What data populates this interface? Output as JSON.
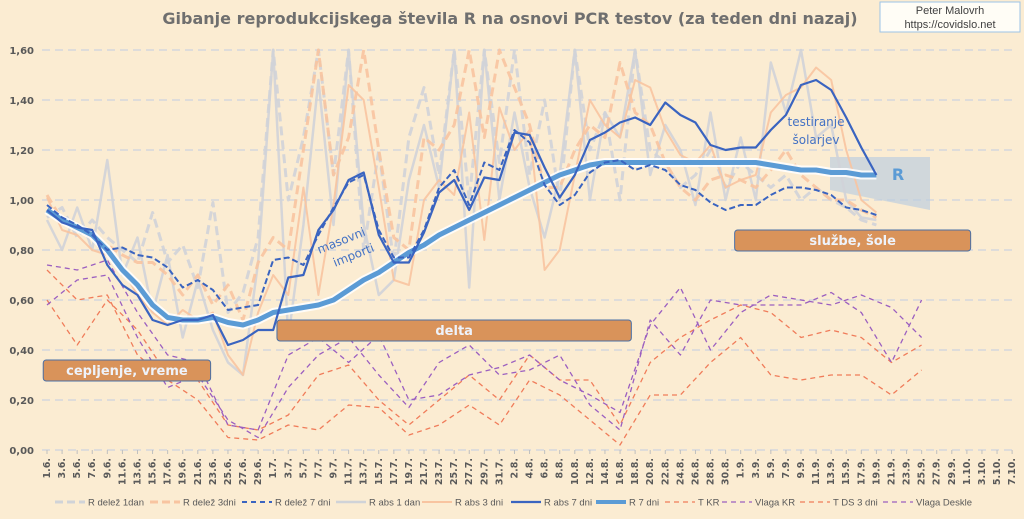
{
  "chart_data": {
    "type": "line",
    "title": "Gibanje reprodukcijskega števila R na osnovi PCR testov (za teden dni nazaj)",
    "credit": {
      "author": "Peter Malovrh",
      "site": "https://covidslo.net"
    },
    "xlabel": "",
    "ylabel": "",
    "x_start_label": "1.6.",
    "ylim": [
      0,
      1.6
    ],
    "yticks": [
      "0,00",
      "0,20",
      "0,40",
      "0,60",
      "0,80",
      "1,00",
      "1,20",
      "1,40",
      "1,60"
    ],
    "ytick_values": [
      0,
      0.2,
      0.4,
      0.6,
      0.8,
      1.0,
      1.2,
      1.4,
      1.6
    ],
    "x_day_range": [
      0,
      128
    ],
    "xticks": [
      "1.6.",
      "3.6.",
      "5.6.",
      "7.6.",
      "9.6.",
      "11.6.",
      "13.6.",
      "15.6.",
      "17.6.",
      "19.6.",
      "21.6.",
      "23.6.",
      "25.6.",
      "27.6.",
      "29.6.",
      "1.7.",
      "3.7.",
      "5.7.",
      "7.7.",
      "9.7.",
      "11.7.",
      "13.7.",
      "15.7.",
      "17.7.",
      "19.7.",
      "21.7.",
      "23.7.",
      "25.7.",
      "27.7.",
      "29.7.",
      "31.7.",
      "2.8.",
      "4.8.",
      "6.8.",
      "8.8.",
      "10.8.",
      "12.8.",
      "14.8.",
      "16.8.",
      "18.8.",
      "20.8.",
      "22.8.",
      "24.8.",
      "26.8.",
      "28.8.",
      "30.8.",
      "1.9.",
      "3.9.",
      "5.9.",
      "7.9.",
      "9.9.",
      "11.9.",
      "13.9.",
      "15.9.",
      "17.9.",
      "19.9.",
      "21.9.",
      "23.9.",
      "25.9.",
      "27.9.",
      "29.9.",
      "1.10.",
      "3.10.",
      "5.10.",
      "7.10."
    ],
    "grid": true,
    "legend_position": "bottom",
    "series": [
      {
        "name": "R delež 1dan",
        "color": "#d0d3d8",
        "step_days": 2,
        "values": [
          0.93,
          0.97,
          0.85,
          0.92,
          0.85,
          0.8,
          0.75,
          0.95,
          0.75,
          0.82,
          0.65,
          0.99,
          0.55,
          0.63,
          0.85,
          1.6,
          1.0,
          1.25,
          1.6,
          1.1,
          1.6,
          0.8,
          1.2,
          0.75,
          1.25,
          1.45,
          1.1,
          1.6,
          1.0,
          1.6,
          1.15,
          1.6,
          1.1,
          1.4,
          1.0,
          1.6,
          1.2,
          1.35,
          1.0,
          1.6,
          1.2,
          1.15,
          1.05,
          1.1,
          1.2,
          1.05,
          1.15,
          1.1,
          1.05,
          1.1,
          1.0,
          1.05,
          1.0,
          0.97,
          0.92,
          0.9
        ]
      },
      {
        "name": "R delež 3dni",
        "color": "#f8c4a0",
        "step_days": 2,
        "values": [
          1.02,
          0.92,
          0.88,
          0.85,
          0.82,
          0.78,
          0.75,
          0.75,
          0.7,
          0.62,
          0.7,
          0.58,
          0.66,
          0.52,
          0.75,
          0.85,
          0.8,
          1.2,
          1.6,
          1.1,
          1.25,
          1.6,
          1.2,
          0.85,
          0.8,
          1.25,
          1.2,
          1.3,
          1.6,
          1.25,
          1.6,
          1.45,
          1.3,
          1.05,
          1.05,
          1.2,
          1.3,
          1.25,
          1.55,
          1.35,
          1.3,
          1.15,
          1.05,
          1.0,
          1.08,
          1.1,
          1.08,
          1.05,
          1.12,
          1.2,
          1.1,
          1.05,
          1.0,
          1.0,
          0.96,
          0.93
        ]
      },
      {
        "name": "R delež 7 dni",
        "color": "#3a64c0",
        "step_days": 2,
        "values": [
          0.98,
          0.93,
          0.9,
          0.86,
          0.8,
          0.81,
          0.78,
          0.77,
          0.73,
          0.65,
          0.68,
          0.64,
          0.56,
          0.57,
          0.58,
          0.76,
          0.77,
          0.74,
          0.86,
          0.97,
          1.07,
          1.1,
          0.88,
          0.77,
          0.77,
          0.88,
          1.05,
          1.12,
          0.98,
          1.15,
          1.12,
          1.28,
          1.23,
          1.06,
          0.98,
          1.02,
          1.11,
          1.15,
          1.16,
          1.12,
          1.14,
          1.12,
          1.06,
          1.04,
          0.99,
          0.96,
          0.98,
          0.98,
          1.02,
          1.05,
          1.05,
          1.04,
          1.02,
          0.97,
          0.96,
          0.94
        ]
      },
      {
        "name": "R abs 1 dan",
        "color": "#d0d3d8",
        "step_days": 2,
        "values": [
          0.92,
          0.8,
          0.97,
          0.8,
          1.16,
          0.7,
          0.85,
          0.55,
          0.78,
          0.45,
          0.68,
          0.48,
          0.35,
          0.3,
          0.75,
          1.6,
          0.45,
          0.9,
          1.48,
          0.9,
          1.6,
          0.9,
          0.62,
          0.68,
          1.08,
          1.3,
          1.05,
          1.6,
          0.65,
          1.6,
          1.0,
          1.35,
          1.05,
          0.85,
          1.1,
          1.6,
          1.0,
          1.35,
          1.25,
          1.6,
          1.1,
          1.3,
          1.2,
          0.98,
          1.35,
          1.0,
          1.25,
          1.0,
          1.55,
          1.35,
          1.6,
          1.25,
          1.3,
          1.0,
          0.93,
          0.92
        ]
      },
      {
        "name": "R abs 3 dni",
        "color": "#f8c4a0",
        "step_days": 2,
        "values": [
          1.01,
          0.88,
          0.86,
          0.8,
          0.78,
          0.72,
          0.62,
          0.55,
          0.5,
          0.56,
          0.52,
          0.55,
          0.38,
          0.3,
          0.55,
          0.7,
          0.62,
          1.05,
          0.62,
          0.98,
          1.46,
          1.4,
          1.05,
          0.68,
          0.66,
          1.0,
          1.08,
          1.02,
          1.35,
          0.84,
          1.37,
          1.2,
          1.28,
          0.72,
          0.8,
          1.1,
          1.4,
          1.3,
          1.25,
          1.48,
          1.45,
          1.28,
          1.18,
          1.15,
          1.22,
          1.05,
          1.08,
          1.1,
          1.35,
          1.42,
          1.45,
          1.53,
          1.48,
          1.2,
          1.0,
          0.95
        ]
      },
      {
        "name": "R abs 7 dni",
        "color": "#3a64c0",
        "step_days": 2,
        "values": [
          0.96,
          0.91,
          0.89,
          0.88,
          0.74,
          0.66,
          0.62,
          0.52,
          0.5,
          0.52,
          0.52,
          0.54,
          0.42,
          0.44,
          0.48,
          0.48,
          0.69,
          0.7,
          0.88,
          0.96,
          1.08,
          1.11,
          0.86,
          0.75,
          0.75,
          0.87,
          1.03,
          1.08,
          0.96,
          1.09,
          1.08,
          1.27,
          1.26,
          1.13,
          1.01,
          1.1,
          1.24,
          1.27,
          1.31,
          1.33,
          1.3,
          1.39,
          1.34,
          1.31,
          1.22,
          1.2,
          1.21,
          1.21,
          1.28,
          1.34,
          1.46,
          1.48,
          1.44,
          1.33,
          1.21,
          1.1
        ]
      },
      {
        "name": "R 7 dni",
        "color": "#5b9bd5",
        "step_days": 2,
        "values": [
          0.96,
          0.92,
          0.89,
          0.86,
          0.8,
          0.72,
          0.66,
          0.58,
          0.53,
          0.52,
          0.52,
          0.53,
          0.51,
          0.5,
          0.52,
          0.55,
          0.56,
          0.57,
          0.58,
          0.6,
          0.64,
          0.68,
          0.71,
          0.75,
          0.79,
          0.82,
          0.86,
          0.89,
          0.92,
          0.95,
          0.98,
          1.01,
          1.04,
          1.07,
          1.1,
          1.12,
          1.14,
          1.15,
          1.15,
          1.15,
          1.15,
          1.15,
          1.15,
          1.15,
          1.15,
          1.15,
          1.15,
          1.15,
          1.14,
          1.13,
          1.12,
          1.12,
          1.11,
          1.11,
          1.1,
          1.1
        ]
      },
      {
        "name": "T KR",
        "color": "#f07c5a",
        "step_days": 4,
        "values": [
          0.6,
          0.42,
          0.6,
          0.48,
          0.3,
          0.28,
          0.1,
          0.08,
          0.14,
          0.3,
          0.34,
          0.2,
          0.1,
          0.2,
          0.3,
          0.2,
          0.38,
          0.28,
          0.28,
          0.1,
          0.35,
          0.45,
          0.52,
          0.58,
          0.55,
          0.45,
          0.48,
          0.45,
          0.35,
          0.42
        ]
      },
      {
        "name": "Vlaga KR",
        "color": "#9b5fc0",
        "step_days": 4,
        "values": [
          0.74,
          0.72,
          0.76,
          0.55,
          0.38,
          0.35,
          0.1,
          0.08,
          0.38,
          0.45,
          0.35,
          0.46,
          0.2,
          0.22,
          0.3,
          0.33,
          0.38,
          0.28,
          0.22,
          0.15,
          0.5,
          0.65,
          0.4,
          0.55,
          0.62,
          0.6,
          0.58,
          0.62,
          0.57,
          0.45
        ]
      },
      {
        "name": "T DS 3 dni",
        "color": "#f07c5a",
        "step_days": 4,
        "values": [
          0.72,
          0.6,
          0.62,
          0.38,
          0.28,
          0.2,
          0.05,
          0.04,
          0.1,
          0.08,
          0.18,
          0.17,
          0.06,
          0.1,
          0.18,
          0.1,
          0.28,
          0.22,
          0.12,
          0.02,
          0.22,
          0.22,
          0.35,
          0.45,
          0.3,
          0.28,
          0.3,
          0.3,
          0.22,
          0.32
        ]
      },
      {
        "name": "Vlaga Deskle",
        "color": "#9b5fc0",
        "step_days": 4,
        "values": [
          0.58,
          0.68,
          0.7,
          0.45,
          0.25,
          0.3,
          0.12,
          0.05,
          0.25,
          0.38,
          0.45,
          0.3,
          0.17,
          0.35,
          0.42,
          0.3,
          0.32,
          0.38,
          0.18,
          0.08,
          0.52,
          0.38,
          0.6,
          0.58,
          0.58,
          0.58,
          0.63,
          0.55,
          0.35,
          0.6
        ]
      }
    ],
    "annotations": {
      "boxes": [
        {
          "label": "cepljenje, vreme",
          "day_from": -0.5,
          "day_to": 21.7,
          "y": 0.32
        },
        {
          "label": "delta",
          "day_from": 30.5,
          "day_to": 77.5,
          "y": 0.48
        },
        {
          "label": "službe, šole",
          "day_from": 91.2,
          "day_to": 122.5,
          "y": 0.84
        }
      ],
      "masovni": [
        "masovni",
        "importi"
      ],
      "testiranje": [
        "testiranje",
        "šolarjev"
      ],
      "r_label": "R"
    },
    "colors": {
      "background": "#fbecd2",
      "box_fill": "#d9935a",
      "box_border": "#4a6fa5",
      "grid": "#d4d6dc",
      "forecast_cone": "#b8cde0"
    }
  }
}
